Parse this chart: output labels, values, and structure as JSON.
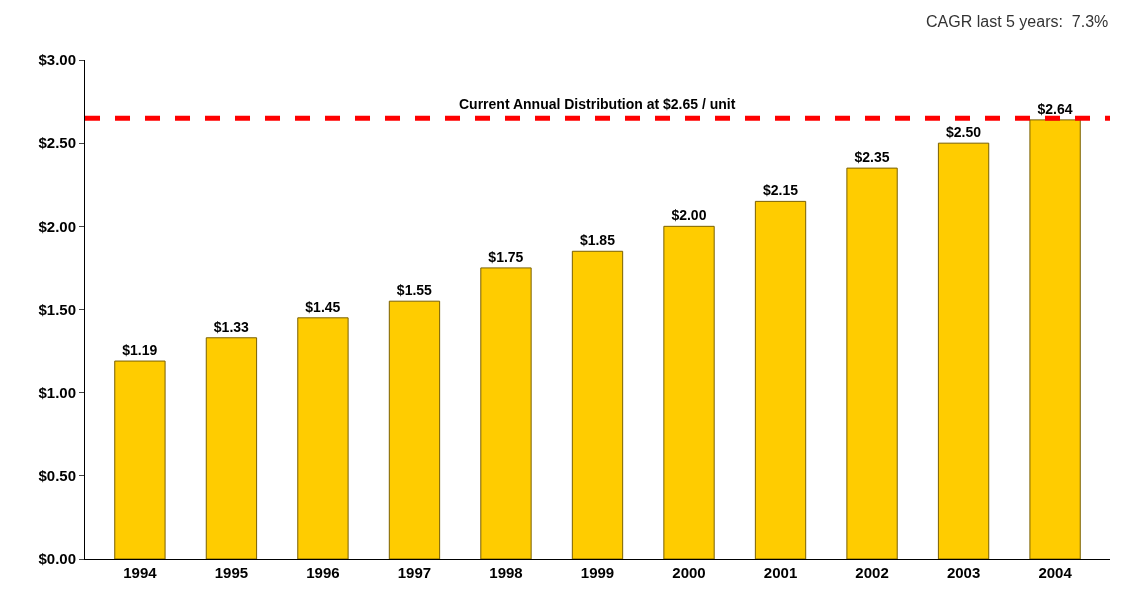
{
  "chart_data": {
    "type": "bar",
    "categories": [
      "1994",
      "1995",
      "1996",
      "1997",
      "1998",
      "1999",
      "2000",
      "2001",
      "2002",
      "2003",
      "2004"
    ],
    "values": [
      1.19,
      1.33,
      1.45,
      1.55,
      1.75,
      1.85,
      2.0,
      2.15,
      2.35,
      2.5,
      2.64
    ],
    "value_labels": [
      "$1.19",
      "$1.33",
      "$1.45",
      "$1.55",
      "$1.75",
      "$1.85",
      "$2.00",
      "$2.15",
      "$2.35",
      "$2.50",
      "$2.64"
    ],
    "color": "#ffcc00",
    "ylim": [
      0,
      3
    ],
    "yticks": [
      {
        "value": 0,
        "label": "$0.00"
      },
      {
        "value": 0.5,
        "label": "$0.50"
      },
      {
        "value": 1,
        "label": "$1.00"
      },
      {
        "value": 1.5,
        "label": "$1.50"
      },
      {
        "value": 2,
        "label": "$2.00"
      },
      {
        "value": 2.5,
        "label": "$2.50"
      },
      {
        "value": 3,
        "label": "$3.00"
      }
    ],
    "ref_lines": [
      {
        "axis": "y",
        "value": 2.65,
        "label": "Current Annual Distribution at $2.65 / unit",
        "color": "#ff0000",
        "line_style": "dashed"
      }
    ],
    "annotations": [
      "CAGR last 5 years:  7.3%"
    ]
  }
}
